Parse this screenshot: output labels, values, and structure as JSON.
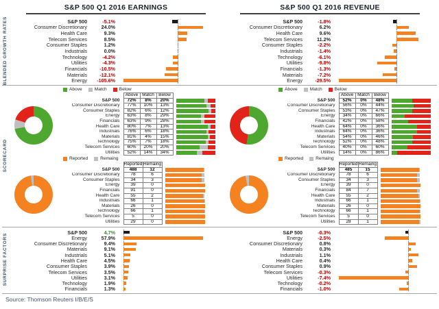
{
  "meta": {
    "source": "Source: Thomson Reuters I/B/E/S"
  },
  "header": {
    "earnings_title": "S&P 500 Q1 2016 EARNINGS",
    "revenue_title": "S&P 500 Q1 2016 REVENUE"
  },
  "section_labels": [
    "BLENDED GROWTH RATES",
    "SCORECARD",
    "SURPRISE FACTORS"
  ],
  "colors": {
    "orange": "#F58220",
    "green": "#4EA72E",
    "red": "#E2231A",
    "gray": "#BFBFBF",
    "black": "#1A1A1A",
    "text": "#262626",
    "negative": "#C00000",
    "sp_green": "#3D8C2F"
  },
  "chart_data": [
    {
      "id": "growth-earnings",
      "panel": "earnings",
      "type": "bar",
      "orientation": "horizontal",
      "title": "Blended Growth Rates — Earnings",
      "unit": "%",
      "categories": [
        "S&P 500",
        "Consumer Discretionary",
        "Health Care",
        "Telecom Services",
        "Consumer Staples",
        "Industrials",
        "Technology",
        "Utilities",
        "Financials",
        "Materials",
        "Energy"
      ],
      "values": [
        -5.1,
        24.0,
        9.3,
        8.5,
        1.2,
        0.0,
        -4.2,
        -4.3,
        -10.5,
        -12.1,
        -105.6
      ]
    },
    {
      "id": "growth-revenue",
      "panel": "revenue",
      "type": "bar",
      "orientation": "horizontal",
      "title": "Blended Growth Rates — Revenue",
      "unit": "%",
      "categories": [
        "S&P 500",
        "Consumer Discretionary",
        "Health Care",
        "Telecom Services",
        "Consumer Staples",
        "Industrials",
        "Technology",
        "Utilities",
        "Financials",
        "Materials",
        "Energy"
      ],
      "values": [
        -1.8,
        6.2,
        9.6,
        11.2,
        -2.2,
        -1.4,
        -6.1,
        -9.8,
        -1.3,
        -7.2,
        -29.5
      ]
    },
    {
      "id": "scorecard-earnings",
      "panel": "earnings",
      "type": "stacked-bar",
      "title": "Earnings Scorecard — % of companies Above / Match / Below estimates",
      "unit": "%",
      "legend_position": "top",
      "categories": [
        "S&P 500",
        "Consumer Discretionary",
        "Consumer Staples",
        "Energy",
        "Financials",
        "Health Care",
        "Industrials",
        "Materials",
        "Technology",
        "Telecom Services",
        "Utilities"
      ],
      "series": [
        {
          "name": "Above",
          "values": [
            72,
            77,
            82,
            63,
            63,
            80,
            76,
            81,
            75,
            60,
            52
          ]
        },
        {
          "name": "Match",
          "values": [
            8,
            10,
            6,
            8,
            9,
            7,
            6,
            4,
            7,
            20,
            14
          ]
        },
        {
          "name": "Below",
          "values": [
            20,
            13,
            12,
            29,
            28,
            13,
            18,
            15,
            18,
            20,
            34
          ]
        }
      ]
    },
    {
      "id": "scorecard-revenue",
      "panel": "revenue",
      "type": "stacked-bar",
      "title": "Revenue Scorecard — % of companies Above / Match / Below estimates",
      "unit": "%",
      "legend_position": "top",
      "categories": [
        "S&P 500",
        "Consumer Discretionary",
        "Consumer Staples",
        "Energy",
        "Financials",
        "Health Care",
        "Industrials",
        "Materials",
        "Technology",
        "Telecom Services",
        "Utilities"
      ],
      "series": [
        {
          "name": "Above",
          "values": [
            52,
            56,
            53,
            34,
            42,
            64,
            64,
            54,
            52,
            40,
            14
          ]
        },
        {
          "name": "Match",
          "values": [
            0,
            0,
            0,
            0,
            0,
            0,
            0,
            0,
            0,
            0,
            0
          ]
        },
        {
          "name": "Below",
          "values": [
            48,
            44,
            47,
            66,
            58,
            36,
            36,
            46,
            48,
            60,
            86
          ]
        }
      ]
    },
    {
      "id": "reported-earnings",
      "panel": "earnings",
      "type": "stacked-bar",
      "title": "Earnings — companies Reported vs Remaining",
      "unit": "companies",
      "legend_position": "top",
      "categories": [
        "S&P 500",
        "Consumer Discretionary",
        "Consumer Staples",
        "Energy",
        "Financials",
        "Health Care",
        "Industrials",
        "Materials",
        "Technology",
        "Telecom Services",
        "Utilities"
      ],
      "series": [
        {
          "name": "Reported",
          "values": [
            488,
            78,
            34,
            39,
            91,
            55,
            66,
            26,
            66,
            5,
            29
          ]
        },
        {
          "name": "Remaing",
          "values": [
            12,
            6,
            3,
            0,
            0,
            2,
            1,
            0,
            1,
            0,
            0
          ]
        }
      ]
    },
    {
      "id": "reported-revenue",
      "panel": "revenue",
      "type": "stacked-bar",
      "title": "Revenue — companies Reported vs Remaining",
      "unit": "companies",
      "legend_position": "top",
      "categories": [
        "S&P 500",
        "Consumer Discretionary",
        "Consumer Staples",
        "Energy",
        "Financials",
        "Health Care",
        "Industrials",
        "Materials",
        "Technology",
        "Telecom Services",
        "Utilities"
      ],
      "series": [
        {
          "name": "Reported",
          "values": [
            485,
            78,
            34,
            39,
            84,
            55,
            66,
            26,
            66,
            5,
            28
          ]
        },
        {
          "name": "Remaing",
          "values": [
            15,
            6,
            3,
            0,
            7,
            2,
            1,
            0,
            1,
            0,
            1
          ]
        }
      ]
    },
    {
      "id": "surprise-earnings",
      "panel": "earnings",
      "type": "bar",
      "orientation": "horizontal",
      "title": "Surprise Factors — Earnings",
      "unit": "%",
      "categories": [
        "S&P 500",
        "Energy",
        "Consumer Discretionary",
        "Materials",
        "Industrials",
        "Health Care",
        "Consumer Staples",
        "Telecom Services",
        "Utilities",
        "Technology",
        "Financials"
      ],
      "values": [
        4.7,
        57.9,
        9.4,
        9.1,
        5.1,
        4.5,
        3.9,
        3.5,
        3.1,
        1.9,
        1.3
      ]
    },
    {
      "id": "surprise-revenue",
      "panel": "revenue",
      "type": "bar",
      "orientation": "horizontal",
      "title": "Surprise Factors — Revenue",
      "unit": "%",
      "categories": [
        "S&P 500",
        "Energy",
        "Consumer Discretionary",
        "Materials",
        "Industrials",
        "Health Care",
        "Consumer Staples",
        "Telecom Services",
        "Utilities",
        "Technology",
        "Financials"
      ],
      "values": [
        -0.3,
        -2.5,
        0.8,
        0.3,
        1.1,
        0.4,
        0.9,
        -0.3,
        -7.4,
        -0.2,
        -1.0
      ]
    }
  ]
}
